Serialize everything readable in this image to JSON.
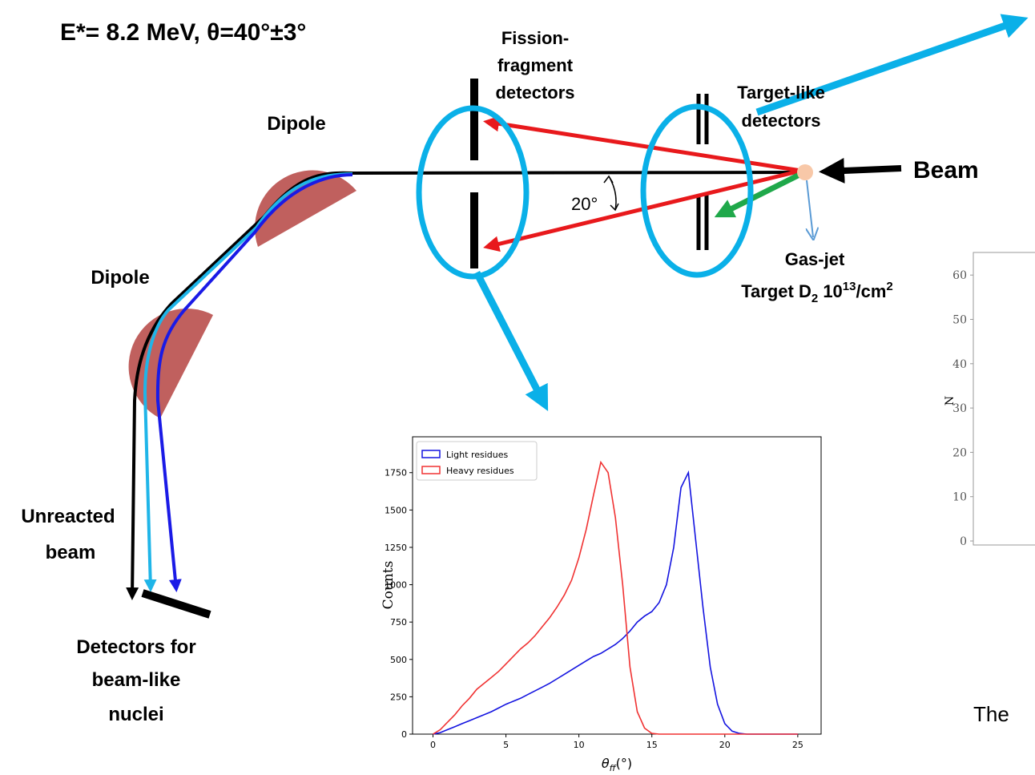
{
  "header": {
    "line": "E*= 8.2 MeV, θ=40°±3°"
  },
  "labels": {
    "fission_fragment": [
      "Fission-",
      "fragment",
      "detectors"
    ],
    "target_like": [
      "Target-like",
      "detectors"
    ],
    "dipole_upper": "Dipole",
    "dipole_lower": "Dipole",
    "beam": "Beam",
    "angle": "20°",
    "gas_jet": {
      "title": "Gas-jet",
      "text": "Target D",
      "sub": "2",
      "density": " 10",
      "exp": "13",
      "unit": "/cm",
      "unit_exp": "2"
    },
    "unreacted": [
      "Unreacted",
      "beam"
    ],
    "beam_detectors": [
      "Detectors for",
      "beam-like",
      "nuclei"
    ]
  },
  "chart_data": {
    "type": "line",
    "x_label": {
      "symbol": "θ",
      "sub": "ff",
      "unit": "(°)"
    },
    "y_label": "Counts",
    "x": [
      0,
      0.5,
      1,
      1.5,
      2,
      2.5,
      3,
      3.5,
      4,
      4.5,
      5,
      5.5,
      6,
      6.5,
      7,
      7.5,
      8,
      8.5,
      9,
      9.5,
      10,
      10.5,
      11,
      11.5,
      12,
      12.5,
      13,
      13.5,
      14,
      14.5,
      15,
      15.5,
      16,
      16.5,
      17,
      17.5,
      18,
      18.5,
      19,
      19.5,
      20,
      20.5,
      21,
      21.5,
      22,
      22.5,
      23,
      23.5,
      24,
      24.5,
      25
    ],
    "series": [
      {
        "name": "Light residues",
        "color": "#1414e0",
        "values": [
          0,
          10,
          30,
          50,
          70,
          90,
          110,
          130,
          150,
          175,
          200,
          220,
          240,
          265,
          290,
          315,
          340,
          370,
          400,
          430,
          460,
          490,
          520,
          540,
          570,
          600,
          640,
          690,
          750,
          790,
          820,
          880,
          1000,
          1250,
          1650,
          1750,
          1300,
          850,
          450,
          200,
          70,
          20,
          5,
          0,
          0,
          0,
          0,
          0,
          0,
          0,
          0
        ]
      },
      {
        "name": "Heavy residues",
        "color": "#f03232",
        "values": [
          0,
          30,
          80,
          130,
          190,
          240,
          300,
          340,
          380,
          420,
          470,
          520,
          570,
          610,
          660,
          720,
          780,
          850,
          930,
          1030,
          1180,
          1370,
          1600,
          1820,
          1750,
          1450,
          1000,
          450,
          150,
          40,
          5,
          0,
          0,
          0,
          0,
          0,
          0,
          0,
          0,
          0,
          0,
          0,
          0,
          0,
          0,
          0,
          0,
          0,
          0,
          0,
          0
        ]
      }
    ],
    "xlim": [
      -1.4,
      26.6
    ],
    "ylim": [
      0,
      1990
    ],
    "xticks": [
      0,
      5,
      10,
      15,
      20,
      25
    ],
    "yticks": [
      0,
      250,
      500,
      750,
      1000,
      1250,
      1500,
      1750
    ],
    "legend": "upper left"
  },
  "side_plot": {
    "y_label": "N",
    "ylim": [
      -0.9,
      65.1
    ],
    "yticks": [
      0,
      10,
      20,
      30,
      40,
      50,
      60
    ]
  },
  "caption": "The"
}
